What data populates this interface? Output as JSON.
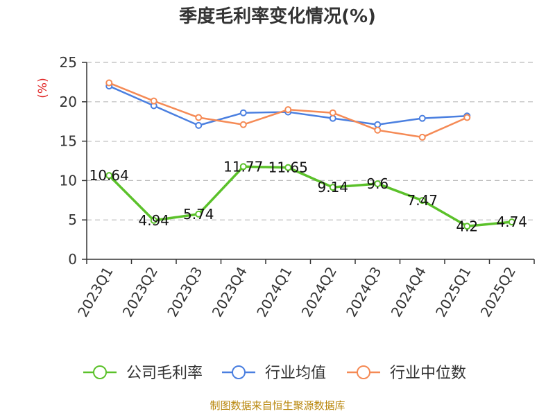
{
  "colors": {
    "company": "#5bc12a",
    "industry_avg": "#4a7fe0",
    "industry_median": "#f58a55",
    "grid": "#bbbbbb",
    "axis": "#333333",
    "ylabel": "#e02020",
    "source": "#b8860b"
  },
  "chart_data": {
    "type": "line",
    "title": "季度毛利率变化情况(%)",
    "ylabel": "(%)",
    "xlabel": "",
    "ylim": [
      0,
      25
    ],
    "yticks": [
      0,
      5,
      10,
      15,
      20,
      25
    ],
    "grid": true,
    "legend_position": "bottom",
    "categories": [
      "2023Q1",
      "2023Q2",
      "2023Q3",
      "2023Q4",
      "2024Q1",
      "2024Q2",
      "2024Q3",
      "2024Q4",
      "2025Q1",
      "2025Q2"
    ],
    "series": [
      {
        "name": "公司毛利率",
        "color_key": "company",
        "show_labels": true,
        "values": [
          10.64,
          4.94,
          5.74,
          11.77,
          11.65,
          9.14,
          9.6,
          7.47,
          4.2,
          4.74
        ]
      },
      {
        "name": "行业均值",
        "color_key": "industry_avg",
        "show_labels": false,
        "values": [
          22.0,
          19.5,
          17.0,
          18.6,
          18.7,
          17.9,
          17.1,
          17.9,
          18.2,
          null
        ]
      },
      {
        "name": "行业中位数",
        "color_key": "industry_median",
        "show_labels": false,
        "values": [
          22.4,
          20.1,
          18.0,
          17.1,
          19.0,
          18.6,
          16.4,
          15.5,
          18.0,
          null
        ]
      }
    ],
    "data_labels": [
      "10.64",
      "4.94",
      "5.74",
      "11.77",
      "11.65",
      "9.14",
      "9.6",
      "7.47",
      "4.2",
      "4.74"
    ]
  },
  "footer": {
    "source": "制图数据来自恒生聚源数据库"
  }
}
